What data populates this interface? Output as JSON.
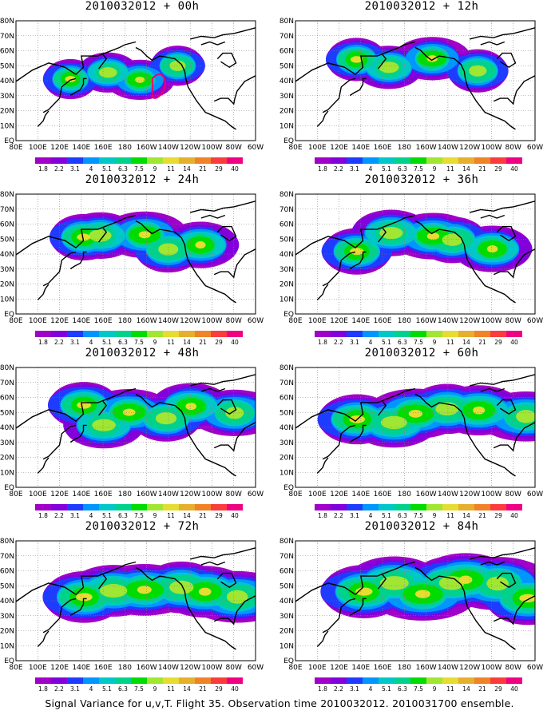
{
  "panels": [
    {
      "title": "2010032012 + 00h",
      "intensity": 0.55,
      "spread": 0.35,
      "seed": 3,
      "contour": true
    },
    {
      "title": "2010032012 + 12h",
      "intensity": 0.6,
      "spread": 0.45,
      "seed": 7,
      "contour": false
    },
    {
      "title": "2010032012 + 24h",
      "intensity": 0.65,
      "spread": 0.55,
      "seed": 11,
      "contour": false
    },
    {
      "title": "2010032012 + 36h",
      "intensity": 0.62,
      "spread": 0.65,
      "seed": 13,
      "contour": false
    },
    {
      "title": "2010032012 + 48h",
      "intensity": 0.6,
      "spread": 0.72,
      "seed": 17,
      "contour": false
    },
    {
      "title": "2010032012 + 60h",
      "intensity": 0.66,
      "spread": 0.8,
      "seed": 19,
      "contour": false
    },
    {
      "title": "2010032012 + 72h",
      "intensity": 0.68,
      "spread": 0.86,
      "seed": 23,
      "contour": false
    },
    {
      "title": "2010032012 + 84h",
      "intensity": 0.7,
      "spread": 0.92,
      "seed": 29,
      "contour": false
    }
  ],
  "lat_labels": [
    "80N",
    "70N",
    "60N",
    "50N",
    "40N",
    "30N",
    "20N",
    "10N",
    "EQ"
  ],
  "lon_labels": [
    "80E",
    "100E",
    "120E",
    "140E",
    "160E",
    "180",
    "160W",
    "140W",
    "120W",
    "100W",
    "80W",
    "60W"
  ],
  "colorbar": {
    "labels": [
      "1.8",
      "2.2",
      "3.1",
      "4",
      "5.1",
      "6.3",
      "7.5",
      "9",
      "11",
      "14",
      "21",
      "29",
      "40"
    ],
    "colors": [
      "#a000c8",
      "#8200dc",
      "#1e3cff",
      "#0096ff",
      "#00c8c8",
      "#00d28c",
      "#00dc00",
      "#a0e632",
      "#e6dc32",
      "#e6af2d",
      "#f08228",
      "#fa3c3c",
      "#f00082"
    ]
  },
  "footer": "Signal Variance for u,v,T. Flight 35. Observation time 2010032012. 2010031700 ensemble."
}
